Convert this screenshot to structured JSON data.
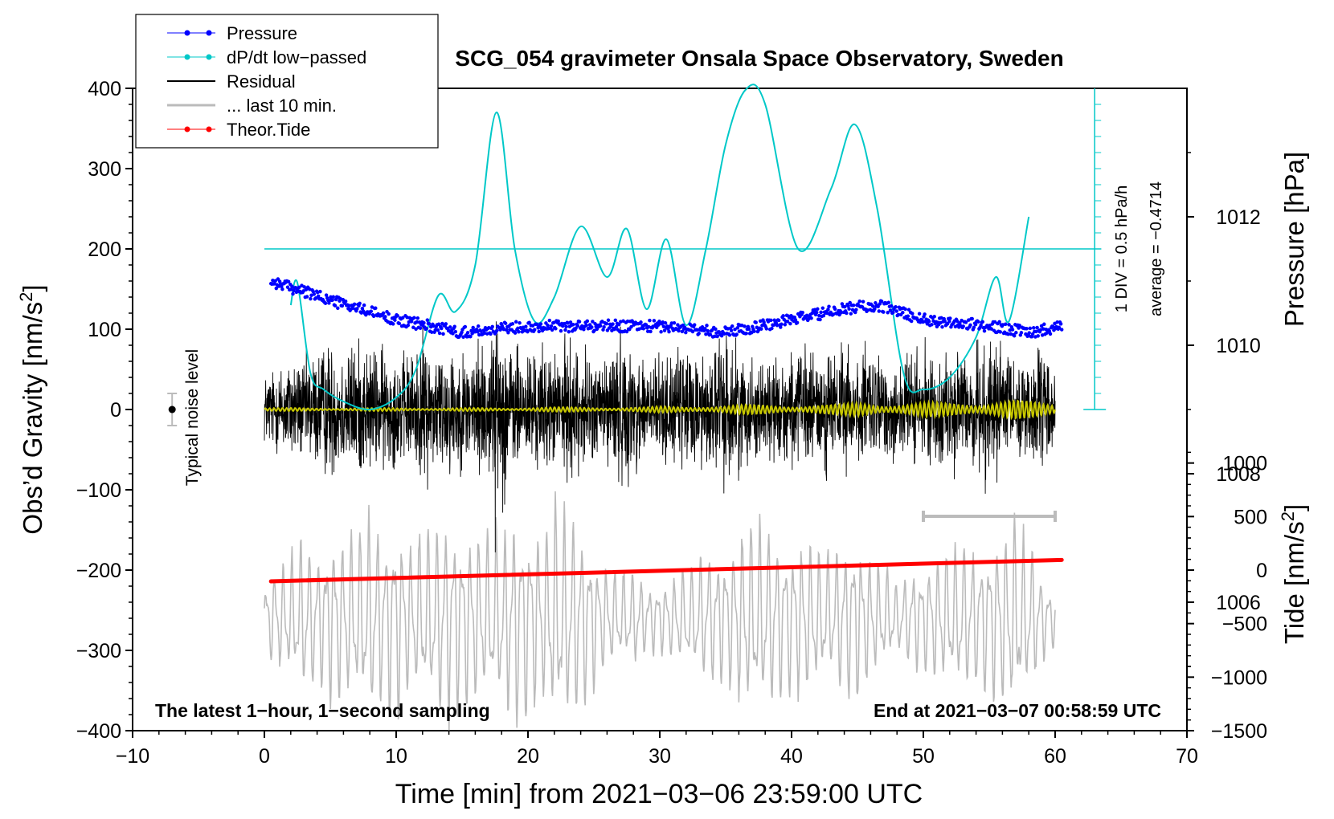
{
  "chart_data": {
    "type": "line",
    "title": "SCG_054 gravimeter Onsala Space Observatory, Sweden",
    "xlabel": "Time [min] from 2021−03−06 23:59:00 UTC",
    "ylabel": "Obs’d Gravity [nm/s",
    "ylabel_sup": "2",
    "ylabel_end": "]",
    "y2label": "Pressure [hPa]",
    "y3label": "Tide [nm/s",
    "y3label_sup": "2",
    "y3label_end": "]",
    "xlim": [
      -10,
      70
    ],
    "ylim": [
      -400,
      400
    ],
    "pressure_lim": [
      1004,
      1014
    ],
    "tide_lim": [
      -1500,
      1500
    ],
    "x_ticks": [
      "−10",
      "0",
      "10",
      "20",
      "30",
      "40",
      "50",
      "60",
      "70"
    ],
    "y_ticks": [
      "400",
      "300",
      "200",
      "100",
      "0",
      "−100",
      "−200",
      "−300",
      "−400"
    ],
    "pressure_ticks": [
      "1012",
      "1010",
      "1008",
      "1006"
    ],
    "tide_ticks": [
      "1000",
      "500",
      "0",
      "−500",
      "−1000",
      "−1500"
    ],
    "legend": {
      "placement": "top-left",
      "entries": [
        {
          "label": "Pressure",
          "color": "#0000ff",
          "marker": true
        },
        {
          "label": "dP/dt low−passed",
          "color": "#00c8c8",
          "marker": true
        },
        {
          "label": "Residual",
          "color": "#000000",
          "marker": false
        },
        {
          "label": "... last 10 min.",
          "color": "#bbbbbb",
          "marker": false
        },
        {
          "label": "Theor.Tide",
          "color": "#ff0000",
          "marker": true
        }
      ]
    },
    "annotations": {
      "bottom_left": "The latest 1−hour, 1−second sampling",
      "bottom_right": "End at 2021−03−07 00:58:59 UTC",
      "noise": "Typical noise level",
      "div": "1 DIV = 0.5 hPa/h",
      "average": "average = −0.4714"
    },
    "noise_level": {
      "x": -7,
      "y": 0,
      "err": 20
    },
    "last10_bar": {
      "x": [
        50,
        60
      ],
      "y": -133
    },
    "dpdt_scale": {
      "baseline_y": 200,
      "tick_step_y": 20,
      "x": 63
    },
    "series": [
      {
        "name": "Pressure",
        "unit": "hPa",
        "color": "#0000ff",
        "x": [
          0.5,
          2,
          5,
          10,
          15,
          20,
          25,
          30,
          35,
          40,
          45,
          47,
          50,
          55,
          58,
          60.5
        ],
        "values": [
          1011.0,
          1010.9,
          1010.7,
          1010.4,
          1010.2,
          1010.3,
          1010.3,
          1010.3,
          1010.2,
          1010.4,
          1010.6,
          1010.6,
          1010.4,
          1010.3,
          1010.2,
          1010.3
        ]
      },
      {
        "name": "dP/dt low-passed",
        "unit": "nm/s2 axis",
        "color": "#00c8c8",
        "x": [
          2,
          2.5,
          3.5,
          4.5,
          6,
          8,
          10,
          11.5,
          13.2,
          14.5,
          16,
          17.6,
          19,
          20.5,
          22,
          24,
          26,
          27.5,
          29,
          30.5,
          32,
          33.5,
          35,
          36.5,
          38,
          40.5,
          43,
          44.8,
          46.5,
          48.5,
          50,
          52,
          54,
          55.5,
          56.5,
          58
        ],
        "values": [
          130,
          158,
          45,
          25,
          10,
          0,
          15,
          50,
          142,
          122,
          180,
          370,
          200,
          110,
          140,
          228,
          165,
          225,
          125,
          212,
          105,
          200,
          330,
          398,
          380,
          200,
          275,
          355,
          250,
          45,
          25,
          40,
          90,
          165,
          110,
          240
        ]
      },
      {
        "name": "Residual",
        "unit": "nm/s2",
        "color": "#000000",
        "x_range": [
          0,
          60
        ],
        "envelope": [
          60,
          70,
          90,
          80,
          100,
          110,
          100,
          110,
          100,
          100,
          90,
          90,
          120,
          100,
          110,
          90,
          110,
          120,
          150,
          100,
          100,
          100,
          90,
          110,
          100,
          80,
          100,
          120,
          100,
          90,
          90,
          80,
          110,
          90,
          100,
          130,
          100,
          80,
          90,
          80,
          90,
          100,
          90,
          110,
          100,
          90,
          100,
          80,
          90,
          100,
          90,
          80,
          100,
          90,
          100,
          110,
          100,
          90,
          100,
          90,
          80
        ]
      },
      {
        "name": "... last 10 min.",
        "unit": "nm/s2",
        "color": "#bbbbbb",
        "x_range": [
          0,
          60
        ],
        "center": -260,
        "envelope": [
          40,
          60,
          70,
          90,
          80,
          90,
          100,
          100,
          120,
          100,
          110,
          90,
          100,
          110,
          120,
          100,
          100,
          100,
          110,
          120,
          110,
          100,
          130,
          120,
          110,
          80,
          60,
          50,
          60,
          40,
          40,
          50,
          60,
          70,
          70,
          80,
          100,
          110,
          110,
          100,
          90,
          90,
          80,
          70,
          90,
          100,
          70,
          60,
          40,
          60,
          60,
          70,
          80,
          90,
          80,
          90,
          100,
          110,
          90,
          50,
          30
        ]
      },
      {
        "name": "Theor.Tide",
        "unit": "nm/s2",
        "color": "#ff0000",
        "x": [
          0.5,
          60.5
        ],
        "values": [
          -105,
          95
        ]
      },
      {
        "name": "Residual smoothed",
        "unit": "nm/s2",
        "color": "#c8c800",
        "x_range": [
          0,
          60
        ],
        "envelope": [
          2,
          2,
          2,
          2,
          2,
          2,
          2,
          2,
          2,
          2,
          2,
          2,
          2,
          2,
          2,
          2,
          2,
          2,
          2,
          2,
          3,
          3,
          3,
          3,
          3,
          3,
          3,
          3,
          3,
          3,
          4,
          4,
          4,
          5,
          5,
          5,
          6,
          6,
          6,
          6,
          6,
          6,
          6,
          6,
          7,
          10,
          10,
          8,
          8,
          8,
          9,
          9,
          9,
          10,
          10,
          11,
          12,
          12,
          10,
          9,
          8
        ]
      }
    ]
  }
}
